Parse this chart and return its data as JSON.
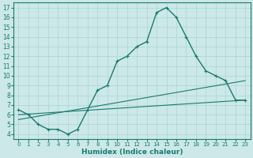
{
  "xlabel": "Humidex (Indice chaleur)",
  "bg_color": "#cce8e8",
  "line_color": "#1a7a6e",
  "grid_color": "#aad4d4",
  "xlim": [
    -0.5,
    23.5
  ],
  "ylim": [
    3.5,
    17.5
  ],
  "xticks": [
    0,
    1,
    2,
    3,
    4,
    5,
    6,
    7,
    8,
    9,
    10,
    11,
    12,
    13,
    14,
    15,
    16,
    17,
    18,
    19,
    20,
    21,
    22,
    23
  ],
  "yticks": [
    4,
    5,
    6,
    7,
    8,
    9,
    10,
    11,
    12,
    13,
    14,
    15,
    16,
    17
  ],
  "line1_x": [
    0,
    1,
    2,
    3,
    4,
    5,
    6,
    7,
    8,
    9,
    10,
    11,
    12,
    13,
    14,
    15,
    16,
    17,
    18,
    19,
    20,
    21,
    22,
    23
  ],
  "line1_y": [
    6.5,
    6.0,
    5.0,
    4.5,
    4.5,
    4.0,
    4.5,
    6.5,
    8.5,
    9.0,
    11.5,
    12.0,
    13.0,
    13.5,
    16.5,
    17.0,
    16.0,
    14.0,
    12.0,
    10.5,
    10.0,
    9.5,
    7.5,
    7.5
  ],
  "line2_x": [
    0,
    23
  ],
  "line2_y": [
    5.5,
    9.5
  ],
  "line3_x": [
    0,
    23
  ],
  "line3_y": [
    6.0,
    7.5
  ],
  "xlabel_fontsize": 6.5,
  "tick_fontsize_x": 5.0,
  "tick_fontsize_y": 5.5,
  "linewidth": 1.0,
  "marker": "+",
  "markersize": 3.5,
  "markeredgewidth": 0.8
}
